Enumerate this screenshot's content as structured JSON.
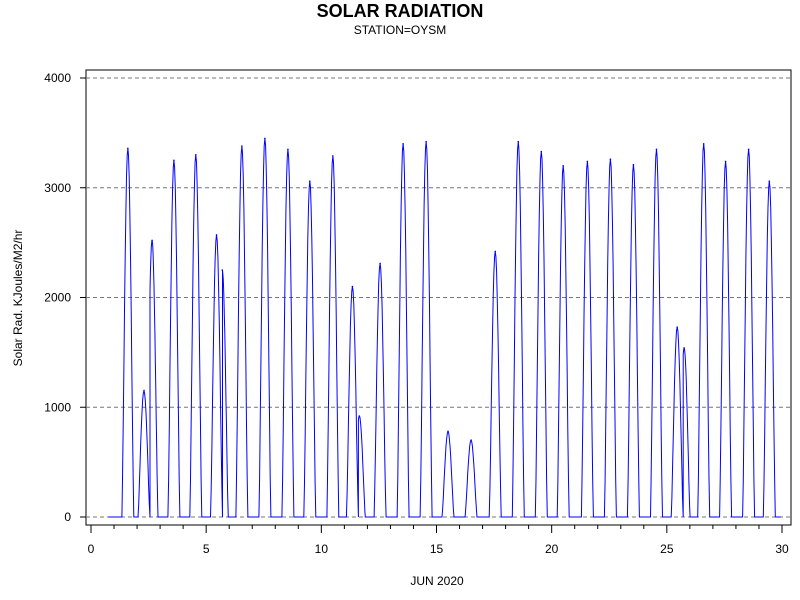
{
  "chart_data": {
    "type": "line",
    "title": "SOLAR RADIATION",
    "subtitle": "STATION=OYSM",
    "xlabel": "JUN 2020",
    "ylabel": "Solar Rad. KJoules/M2/hr",
    "xlim": [
      0,
      30
    ],
    "ylim": [
      0,
      4000
    ],
    "x_ticks": [
      "0",
      "5",
      "10",
      "15",
      "20",
      "25",
      "30"
    ],
    "y_ticks": [
      "0",
      "1000",
      "2000",
      "3000",
      "4000"
    ],
    "grid": "horizontal dashed",
    "line_color": "#0000ff",
    "series": [
      {
        "daily_peaks": [
          {
            "x": 1.6,
            "y": 3360
          },
          {
            "x": 2.3,
            "y": 1150
          },
          {
            "x": 2.65,
            "y": 2520
          },
          {
            "x": 3.6,
            "y": 3250
          },
          {
            "x": 4.55,
            "y": 3300
          },
          {
            "x": 5.45,
            "y": 2570
          },
          {
            "x": 5.7,
            "y": 2250
          },
          {
            "x": 6.55,
            "y": 3380
          },
          {
            "x": 7.55,
            "y": 3450
          },
          {
            "x": 8.55,
            "y": 3350
          },
          {
            "x": 9.5,
            "y": 3060
          },
          {
            "x": 10.5,
            "y": 3290
          },
          {
            "x": 11.35,
            "y": 2100
          },
          {
            "x": 11.65,
            "y": 920
          },
          {
            "x": 12.55,
            "y": 2310
          },
          {
            "x": 13.55,
            "y": 3400
          },
          {
            "x": 14.55,
            "y": 3420
          },
          {
            "x": 15.5,
            "y": 780
          },
          {
            "x": 16.5,
            "y": 700
          },
          {
            "x": 17.55,
            "y": 2420
          },
          {
            "x": 18.55,
            "y": 3420
          },
          {
            "x": 19.55,
            "y": 3330
          },
          {
            "x": 20.5,
            "y": 3200
          },
          {
            "x": 21.55,
            "y": 3240
          },
          {
            "x": 22.55,
            "y": 3260
          },
          {
            "x": 23.55,
            "y": 3210
          },
          {
            "x": 24.55,
            "y": 3350
          },
          {
            "x": 25.45,
            "y": 1730
          },
          {
            "x": 25.75,
            "y": 1540
          },
          {
            "x": 26.6,
            "y": 3400
          },
          {
            "x": 27.55,
            "y": 3240
          },
          {
            "x": 28.55,
            "y": 3350
          },
          {
            "x": 29.45,
            "y": 3060
          }
        ]
      }
    ]
  }
}
